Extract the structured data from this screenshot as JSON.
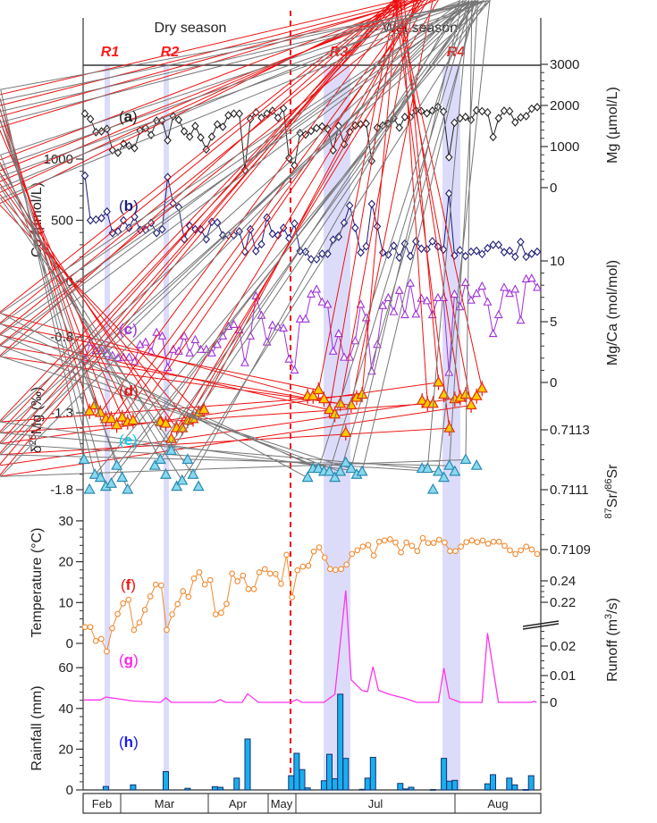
{
  "header": {
    "dry_season": "Dry season",
    "wet_season": "Wet season",
    "events": [
      "R1",
      "R2",
      "R3",
      "R4"
    ]
  },
  "months": [
    "Feb",
    "Mar",
    "Apr",
    "May",
    "Jul",
    "Aug"
  ],
  "axes": {
    "left": {
      "Ca": {
        "title": "Ca (µmol/L)",
        "ticks": [
          "1000",
          "500",
          "0"
        ]
      },
      "d26Mg": {
        "title_prefix": "δ",
        "title_sup": "26",
        "title_rest": "Mg (‰)",
        "ticks": [
          "-0.8",
          "-1.3",
          "-1.8"
        ]
      },
      "T": {
        "title": "Temperature (°C)",
        "ticks": [
          "30",
          "20",
          "10",
          "0"
        ]
      },
      "Rain": {
        "title": "Rainfall (mm)",
        "ticks": [
          "60",
          "40",
          "20",
          "0"
        ]
      }
    },
    "right": {
      "Mg": {
        "title": "Mg (µmol/L)",
        "ticks": [
          "3000",
          "2000",
          "1000",
          "0"
        ]
      },
      "MgCa": {
        "title": "Mg/Ca (mol/mol)",
        "ticks": [
          "10",
          "5",
          "0"
        ]
      },
      "Sr": {
        "title_sup1": "87",
        "title_mid": "Sr/",
        "title_sup2": "86",
        "title_rest": "Sr",
        "ticks": [
          "0.7113",
          "0.7111",
          "0.7109"
        ]
      },
      "Runoff": {
        "title": "Runoff (m",
        "title_sup": "3",
        "title_rest": "/s)",
        "ticks": [
          "0.24",
          "0.22",
          "0.02",
          "0.01",
          "0"
        ]
      }
    }
  },
  "chart_data": {
    "type": "line",
    "x_tick_labels": [
      "Feb",
      "Mar",
      "Apr",
      "May",
      "Jul",
      "Aug"
    ],
    "shaded_events": [
      "R1",
      "R2",
      "R3",
      "R4"
    ],
    "season_divider": "dashed red line between Dry season and Wet season",
    "colors": {
      "band": "#dcdcfa",
      "divider": "#ee1111",
      "a": "#222222",
      "b": "#1c1c78",
      "c": "#a030d8",
      "d": "#ee1111",
      "d_fill": "#ffcc00",
      "e": "#777777",
      "e_fill": "#88d8ee",
      "f": "#f08a30",
      "g": "#ff33ee",
      "h": "#1aaeee",
      "h_stroke": "#13306f"
    },
    "series": [
      {
        "label": "a",
        "axis": "Mg",
        "marker": "diamond",
        "values": [
          1800,
          1670,
          1350,
          1370,
          1430,
          910,
          850,
          1070,
          1020,
          960,
          1390,
          1450,
          1280,
          1630,
          1630,
          1150,
          1740,
          1650,
          1370,
          1240,
          1500,
          1220,
          930,
          1240,
          1540,
          1480,
          1760,
          1800,
          1800,
          430,
          1670,
          1830,
          1700,
          1800,
          1870,
          1700,
          1930,
          720,
          540,
          1330,
          1290,
          1380,
          1450,
          1490,
          1430,
          910,
          1500,
          1050,
          1360,
          1510,
          1540,
          1560,
          650,
          1460,
          1510,
          1560,
          1690,
          1460,
          1720,
          1710,
          1880,
          1860,
          1810,
          1870,
          1970,
          1850,
          740,
          1580,
          1690,
          1720,
          1650,
          1880,
          1860,
          1830,
          1230,
          1690,
          1870,
          1860,
          1590,
          1710,
          1740,
          1920,
          1960
        ]
      },
      {
        "label": "b",
        "axis": "Ca",
        "marker": "diamond",
        "values": [
          864,
          499,
          506,
          518,
          571,
          396,
          409,
          499,
          438,
          528,
          421,
          421,
          479,
          396,
          426,
          852,
          637,
          608,
          345,
          455,
          426,
          426,
          345,
          487,
          482,
          377,
          377,
          377,
          409,
          243,
          426,
          248,
          304,
          523,
          389,
          377,
          438,
          353,
          474,
          248,
          243,
          182,
          182,
          226,
          226,
          341,
          365,
          479,
          620,
          438,
          236,
          287,
          633,
          450,
          236,
          219,
          292,
          195,
          309,
          207,
          328,
          268,
          263,
          328,
          285,
          261,
          718,
          212,
          255,
          207,
          243,
          250,
          224,
          272,
          299,
          299,
          239,
          250,
          202,
          323,
          202,
          226,
          243
        ]
      },
      {
        "label": "c",
        "axis": "MgCa",
        "marker": "triangle",
        "values": [
          1.9,
          3.3,
          2.6,
          2.6,
          2.35,
          2.2,
          2.0,
          2.05,
          2.05,
          1.7,
          3.1,
          3.3,
          2.5,
          4.1,
          3.8,
          1.2,
          2.7,
          2.55,
          3.8,
          2.4,
          3.5,
          2.7,
          2.7,
          2.4,
          3.1,
          3.8,
          4.6,
          4.75,
          4.3,
          1.6,
          3.8,
          7.1,
          5.5,
          3.3,
          4.7,
          4.55,
          4.45,
          1.9,
          1.0,
          5.2,
          5.2,
          7.25,
          7.65,
          6.6,
          6.4,
          2.55,
          4.0,
          2.05,
          2.05,
          3.4,
          6.4,
          5.3,
          0.9,
          3.1,
          6.3,
          6.95,
          5.8,
          7.55,
          5.55,
          8.15,
          5.6,
          6.9,
          6.7,
          5.55,
          6.95,
          6.95,
          0.8,
          7.25,
          6.2,
          8.2,
          6.75,
          7.3,
          7.9,
          6.6,
          4.0,
          5.55,
          7.8,
          7.3,
          7.65,
          5.1,
          8.5,
          8.55,
          7.8
        ]
      },
      {
        "label": "d",
        "axis": "d26Mg",
        "marker": "triangle-filled",
        "error_bar": 0.05,
        "segments": [
          [
            [
              1,
              -1.29
            ],
            [
              2,
              -1.25
            ],
            [
              3,
              -1.3
            ],
            [
              4,
              -1.34
            ],
            [
              5,
              -1.34
            ],
            [
              6,
              -1.38
            ],
            [
              7,
              -1.33
            ],
            [
              8,
              -1.36
            ],
            [
              9,
              -1.35
            ],
            [
              14,
              -1.36
            ],
            [
              15,
              -1.37
            ],
            [
              16,
              -1.47
            ],
            [
              17,
              -1.4
            ],
            [
              18,
              -1.4
            ],
            [
              19,
              -1.35
            ],
            [
              20,
              -1.34
            ],
            [
              21,
              -1.3
            ],
            [
              22,
              -1.28
            ]
          ],
          [
            [
              41,
              -1.19
            ],
            [
              42,
              -1.19
            ],
            [
              43,
              -1.15
            ],
            [
              44,
              -1.21
            ],
            [
              45,
              -1.28
            ],
            [
              46,
              -1.31
            ],
            [
              47,
              -1.24
            ],
            [
              48,
              -1.43
            ],
            [
              49,
              -1.25
            ],
            [
              50,
              -1.2
            ],
            [
              51,
              -1.18
            ],
            [
              62,
              -1.22
            ],
            [
              63,
              -1.24
            ],
            [
              64,
              -1.24
            ],
            [
              65,
              -1.1
            ],
            [
              66,
              -1.18
            ],
            [
              67,
              -1.4
            ],
            [
              68,
              -1.21
            ],
            [
              69,
              -1.2
            ],
            [
              70,
              -1.18
            ],
            [
              71,
              -1.25
            ],
            [
              72,
              -1.19
            ],
            [
              73,
              -1.14
            ]
          ]
        ]
      },
      {
        "label": "e",
        "axis": "Sr",
        "marker": "triangle-filled",
        "segments": [
          [
            [
              0,
              0.7112
            ],
            [
              1,
              0.7111
            ],
            [
              2,
              0.71115
            ],
            [
              3,
              0.71114
            ],
            [
              4,
              0.71111
            ],
            [
              5,
              0.71112
            ],
            [
              6,
              0.71118
            ],
            [
              7,
              0.71114
            ],
            [
              8,
              0.7111
            ],
            [
              13,
              0.71118
            ],
            [
              14,
              0.7112
            ],
            [
              15,
              0.71115
            ],
            [
              16,
              0.71123
            ],
            [
              17,
              0.71111
            ],
            [
              18,
              0.71113
            ],
            [
              19,
              0.7112
            ],
            [
              20,
              0.71115
            ],
            [
              21,
              0.71111
            ]
          ],
          [
            [
              41,
              0.71114
            ],
            [
              42,
              0.71117
            ],
            [
              43,
              0.71117
            ],
            [
              44,
              0.71116
            ],
            [
              45,
              0.71116
            ],
            [
              46,
              0.71114
            ],
            [
              47,
              0.71116
            ],
            [
              48,
              0.71119
            ],
            [
              49,
              0.71117
            ],
            [
              50,
              0.71115
            ],
            [
              51,
              0.71116
            ],
            [
              62,
              0.71117
            ],
            [
              63,
              0.71117
            ],
            [
              64,
              0.7111
            ],
            [
              65,
              0.71116
            ],
            [
              66,
              0.71114
            ],
            [
              67,
              0.71118
            ],
            [
              68,
              0.71116
            ],
            [
              70,
              0.7112
            ],
            [
              72,
              0.71118
            ]
          ]
        ]
      },
      {
        "label": "f",
        "axis": "T",
        "marker": "circle",
        "values": [
          4.0,
          4.0,
          0.6,
          1.1,
          -2.0,
          3.7,
          7.2,
          9.8,
          10.7,
          3.3,
          5.1,
          8.2,
          11.5,
          14.4,
          14.2,
          3.3,
          7.1,
          9.6,
          12.8,
          11.4,
          15.9,
          17.4,
          14.4,
          15.5,
          7.1,
          7.5,
          9.7,
          17.1,
          15.2,
          16.6,
          13.3,
          13.3,
          17.4,
          18.2,
          17.1,
          17.0,
          14.6,
          21.7,
          11.3,
          17.9,
          18.8,
          19.0,
          22.5,
          23.5,
          21.0,
          18.2,
          18.0,
          18.2,
          19.3,
          21.9,
          22.8,
          23.7,
          24.1,
          21.5,
          24.9,
          25.2,
          25.5,
          24.7,
          22.3,
          24.7,
          23.9,
          22.6,
          25.8,
          24.6,
          24.6,
          25.4,
          24.7,
          22.6,
          22.6,
          23.7,
          24.8,
          25.2,
          24.8,
          25.2,
          24.4,
          24.9,
          24.9,
          23.9,
          22.8,
          21.9,
          22.8,
          23.7,
          23.0,
          21.9
        ]
      },
      {
        "label": "g",
        "axis": "Runoff",
        "marker": "none",
        "points": [
          [
            0,
            0.0009
          ],
          [
            3,
            0.0009
          ],
          [
            4,
            0.002
          ],
          [
            9,
            0.0005
          ],
          [
            14,
            0.0
          ],
          [
            15,
            0.0017
          ],
          [
            16,
            0.0
          ],
          [
            24,
            0.0
          ],
          [
            25,
            0.001
          ],
          [
            26,
            0.0
          ],
          [
            29,
            0.0
          ],
          [
            30,
            0.0032
          ],
          [
            32,
            0.0
          ],
          [
            37,
            0.0
          ],
          [
            38,
            0.0
          ],
          [
            39,
            0.0011
          ],
          [
            40,
            0.0
          ],
          [
            41,
            0.0
          ],
          [
            44,
            0.0
          ],
          [
            46,
            0.003
          ],
          [
            48,
            0.231
          ],
          [
            49,
            0.0084
          ],
          [
            51,
            0.0044
          ],
          [
            52,
            0.004
          ],
          [
            53,
            0.013
          ],
          [
            54,
            0.0045
          ],
          [
            56,
            0.003
          ],
          [
            59,
            0.0014
          ],
          [
            61,
            0.0
          ],
          [
            65,
            0.0
          ],
          [
            66,
            0.0125
          ],
          [
            67,
            0.0016
          ],
          [
            69,
            0.0
          ],
          [
            73,
            0.0
          ],
          [
            74,
            0.0244
          ],
          [
            76,
            0.0
          ],
          [
            82,
            0.0
          ],
          [
            82.5,
            0.0004
          ],
          [
            83,
            0.0
          ]
        ]
      },
      {
        "label": "h",
        "axis": "Rain",
        "type": "bar",
        "points": [
          [
            4,
            1.7
          ],
          [
            9,
            2.5
          ],
          [
            15,
            9
          ],
          [
            19,
            0.8
          ],
          [
            24,
            1.6
          ],
          [
            25,
            1.3
          ],
          [
            28,
            5.8
          ],
          [
            30,
            25
          ],
          [
            38,
            7
          ],
          [
            39,
            18
          ],
          [
            40,
            10
          ],
          [
            41,
            1
          ],
          [
            44,
            4.5
          ],
          [
            45,
            17.5
          ],
          [
            46,
            5.5
          ],
          [
            47,
            47
          ],
          [
            48,
            15.5
          ],
          [
            51,
            0.3
          ],
          [
            52,
            5.8
          ],
          [
            53,
            16
          ],
          [
            58,
            3.2
          ],
          [
            59,
            0.5
          ],
          [
            60,
            1.3
          ],
          [
            64,
            0.2
          ],
          [
            66,
            15.5
          ],
          [
            67,
            4.3
          ],
          [
            68,
            4.7
          ],
          [
            74,
            3
          ],
          [
            75,
            7.5
          ],
          [
            78,
            5.8
          ],
          [
            79,
            2.5
          ],
          [
            81,
            0.2
          ],
          [
            82,
            7
          ]
        ]
      }
    ]
  }
}
